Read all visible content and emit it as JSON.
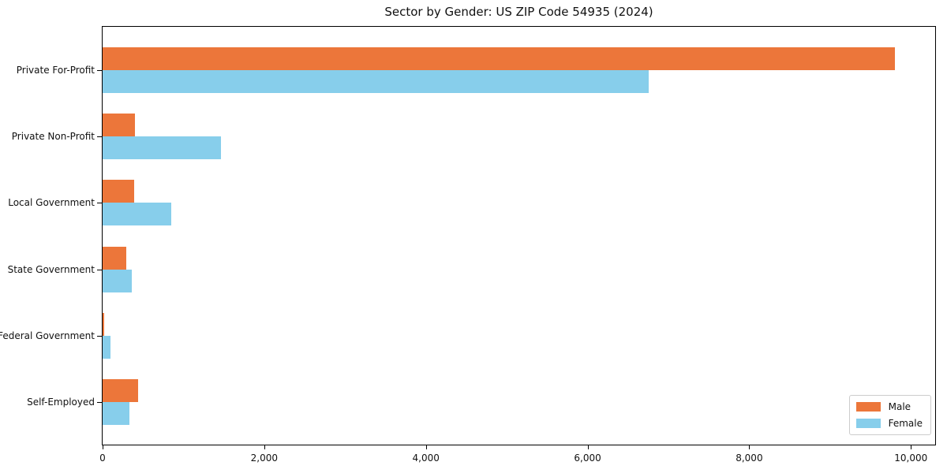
{
  "chart_data": {
    "type": "bar",
    "orientation": "horizontal",
    "title": "Sector by Gender: US ZIP Code 54935 (2024)",
    "categories": [
      "Private For-Profit",
      "Private Non-Profit",
      "Local Government",
      "State Government",
      "Federal Government",
      "Self-Employed"
    ],
    "series": [
      {
        "name": "Male",
        "color": "#ec763a",
        "values": [
          9800,
          405,
          390,
          295,
          15,
          440
        ]
      },
      {
        "name": "Female",
        "color": "#87ceeb",
        "values": [
          6760,
          1465,
          845,
          365,
          100,
          335
        ]
      }
    ],
    "xlabel": "",
    "ylabel": "",
    "xlim": [
      0,
      10300
    ],
    "x_ticks": [
      0,
      2000,
      4000,
      6000,
      8000,
      10000
    ],
    "x_tick_labels": [
      "0",
      "2,000",
      "4,000",
      "6,000",
      "8,000",
      "10,000"
    ],
    "grid": false,
    "legend": {
      "position": "lower right"
    },
    "colors": {
      "background": "#ffffff",
      "spine": "#000000",
      "legend_border": "#cccccc"
    }
  }
}
